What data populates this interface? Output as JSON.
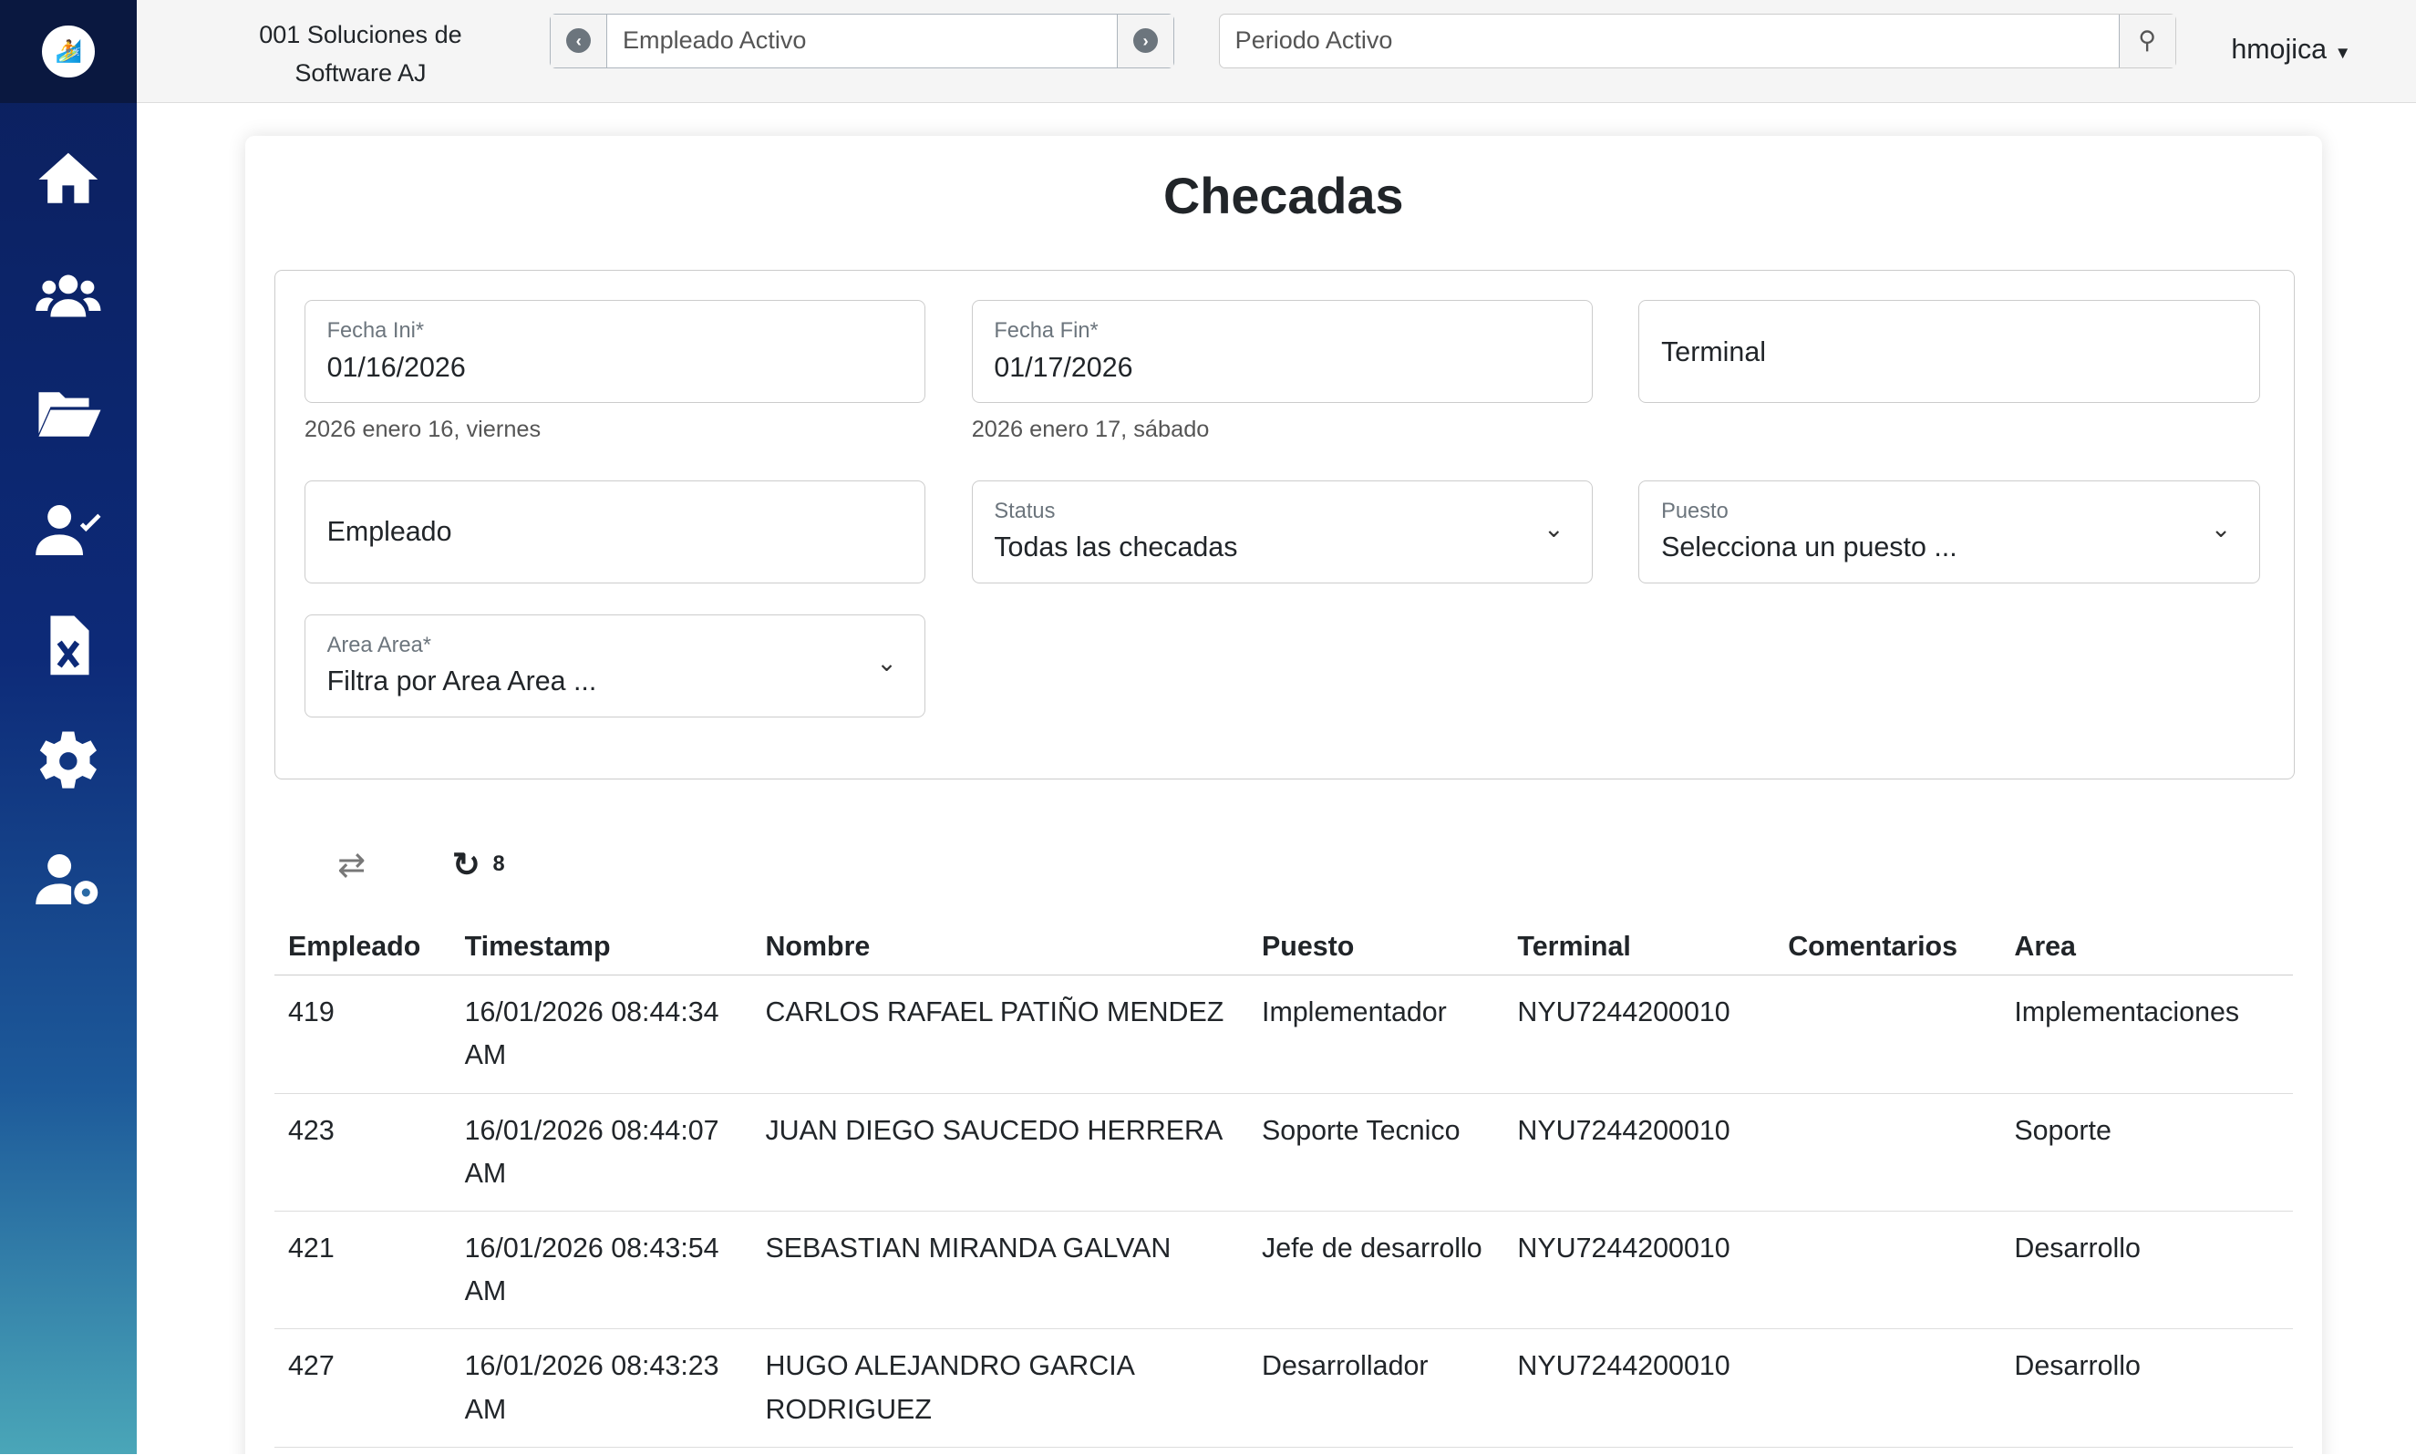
{
  "topbar": {
    "company": "001 Soluciones de Software AJ",
    "employee_placeholder": "Empleado Activo",
    "period_placeholder": "Periodo Activo",
    "user": "hmojica"
  },
  "page": {
    "title": "Checadas"
  },
  "filters": {
    "fecha_ini": {
      "label": "Fecha Ini*",
      "value": "01/16/2026",
      "hint": "2026 enero 16, viernes"
    },
    "fecha_fin": {
      "label": "Fecha Fin*",
      "value": "01/17/2026",
      "hint": "2026 enero 17, sábado"
    },
    "terminal": {
      "placeholder": "Terminal"
    },
    "empleado": {
      "placeholder": "Empleado"
    },
    "status": {
      "label": "Status",
      "value": "Todas las checadas"
    },
    "puesto": {
      "label": "Puesto",
      "value": "Selecciona un puesto ..."
    },
    "area": {
      "label": "Area Area*",
      "value": "Filtra por Area Area ..."
    }
  },
  "toolbar": {
    "count": "8"
  },
  "table": {
    "headers": [
      "Empleado",
      "Timestamp",
      "Nombre",
      "Puesto",
      "Terminal",
      "Comentarios",
      "Area"
    ],
    "rows": [
      [
        "419",
        "16/01/2026 08:44:34 AM",
        "CARLOS RAFAEL PATIÑO MENDEZ",
        "Implementador",
        "NYU7244200010",
        "",
        "Implementaciones"
      ],
      [
        "423",
        "16/01/2026 08:44:07 AM",
        "JUAN DIEGO SAUCEDO HERRERA",
        "Soporte Tecnico",
        "NYU7244200010",
        "",
        "Soporte"
      ],
      [
        "421",
        "16/01/2026 08:43:54 AM",
        "SEBASTIAN MIRANDA GALVAN",
        "Jefe de desarrollo",
        "NYU7244200010",
        "",
        "Desarrollo"
      ],
      [
        "427",
        "16/01/2026 08:43:23 AM",
        "HUGO ALEJANDRO GARCIA RODRIGUEZ",
        "Desarrollador",
        "NYU7244200010",
        "",
        "Desarrollo"
      ]
    ]
  }
}
